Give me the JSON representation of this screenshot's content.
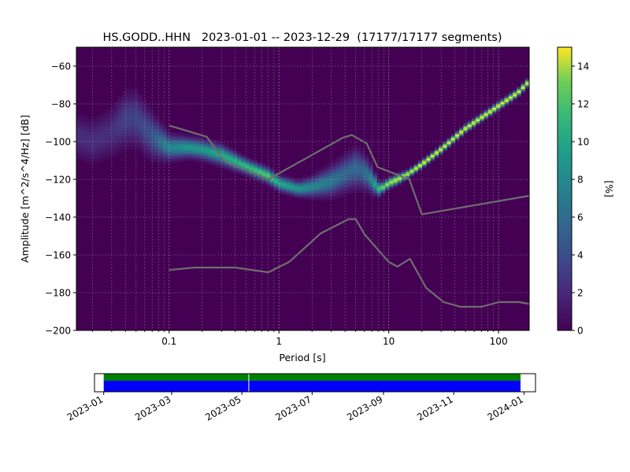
{
  "chart_data": {
    "type": "heatmap",
    "title": "HS.GODD..HHN   2023-01-01 -- 2023-12-29  (17177/17177 segments)",
    "xlabel": "Period [s]",
    "ylabel": "Amplitude [m^2/s^4/Hz] [dB]",
    "x_scale": "log",
    "xlim": [
      0.0143,
      190
    ],
    "ylim": [
      -200,
      -50
    ],
    "x_ticks": [
      0.1,
      1,
      10,
      100
    ],
    "x_tick_labels": [
      "0.1",
      "1",
      "10",
      "100"
    ],
    "y_ticks": [
      -200,
      -180,
      -160,
      -140,
      -120,
      -100,
      -80,
      -60
    ],
    "y_tick_labels": [
      "−200",
      "−180",
      "−160",
      "−140",
      "−120",
      "−100",
      "−80",
      "−60"
    ],
    "grid": true,
    "colorbar": {
      "label": "[%]",
      "range": [
        0,
        15
      ],
      "ticks": [
        0,
        2,
        4,
        6,
        8,
        10,
        12,
        14
      ],
      "tick_labels": [
        "0",
        "2",
        "4",
        "6",
        "8",
        "10",
        "12",
        "14"
      ],
      "colormap": "viridis"
    },
    "mode_curve": {
      "period": [
        0.0143,
        0.02,
        0.03,
        0.04,
        0.05,
        0.07,
        0.1,
        0.15,
        0.2,
        0.3,
        0.5,
        0.8,
        1.0,
        1.5,
        2.0,
        3.0,
        4.0,
        5.0,
        6.0,
        7.0,
        8.0,
        9.0,
        10,
        12,
        15,
        20,
        30,
        50,
        100,
        150,
        190
      ],
      "amplitude_db": [
        -97,
        -100,
        -95,
        -88,
        -88,
        -97,
        -103,
        -103,
        -104,
        -107,
        -113,
        -118,
        -122,
        -125,
        -124,
        -121,
        -117,
        -114,
        -116,
        -120,
        -125,
        -124,
        -122,
        -120,
        -117,
        -112,
        -104,
        -93,
        -81,
        -74,
        -68
      ],
      "spread_db": [
        9,
        9,
        10,
        11,
        11,
        9,
        5,
        4,
        4,
        4,
        3,
        3,
        3,
        3,
        4,
        6,
        7,
        8,
        7,
        5,
        3,
        2,
        2,
        2,
        1.5,
        1.5,
        1.5,
        1.5,
        1.5,
        1.5,
        1.5
      ],
      "peak_percent": [
        2,
        2,
        2,
        3,
        3,
        4,
        7,
        8,
        8,
        9,
        10,
        11,
        9,
        8,
        7,
        6,
        5,
        5,
        5,
        7,
        10,
        12,
        13,
        14,
        14,
        15,
        15,
        15,
        15,
        15,
        15
      ]
    },
    "noise_models": [
      {
        "period": [
          0.1,
          0.17,
          0.4,
          0.8,
          1.24,
          2.4,
          4.3,
          5.0,
          6.0,
          10,
          12,
          15.6,
          21.9,
          31.6,
          45,
          70,
          101,
          154,
          190
        ],
        "amplitude_db": [
          -168,
          -166.7,
          -166.7,
          -169.2,
          -163.7,
          -148.6,
          -141.1,
          -141.1,
          -149,
          -163.8,
          -166.2,
          -162.1,
          -177.5,
          -185,
          -187.5,
          -187.5,
          -185,
          -185,
          -186
        ]
      },
      {
        "period": [
          0.1,
          0.22,
          0.32,
          0.8,
          3.8,
          4.6,
          6.3,
          7.9,
          15.4,
          20,
          354.8
        ],
        "amplitude_db": [
          -91.5,
          -97.4,
          -110.5,
          -120,
          -98,
          -96.5,
          -101,
          -113.5,
          -120,
          -138.5,
          -126
        ]
      }
    ],
    "time_axis": {
      "tick_labels": [
        "2023-01",
        "2023-03",
        "2023-05",
        "2023-07",
        "2023-09",
        "2023-11",
        "2024-01"
      ],
      "start": "2023-01-01",
      "end": "2023-12-29",
      "gap": "2023-05-07",
      "colors": {
        "top_band": "#008000",
        "bottom_band": "#0000ff"
      }
    }
  }
}
